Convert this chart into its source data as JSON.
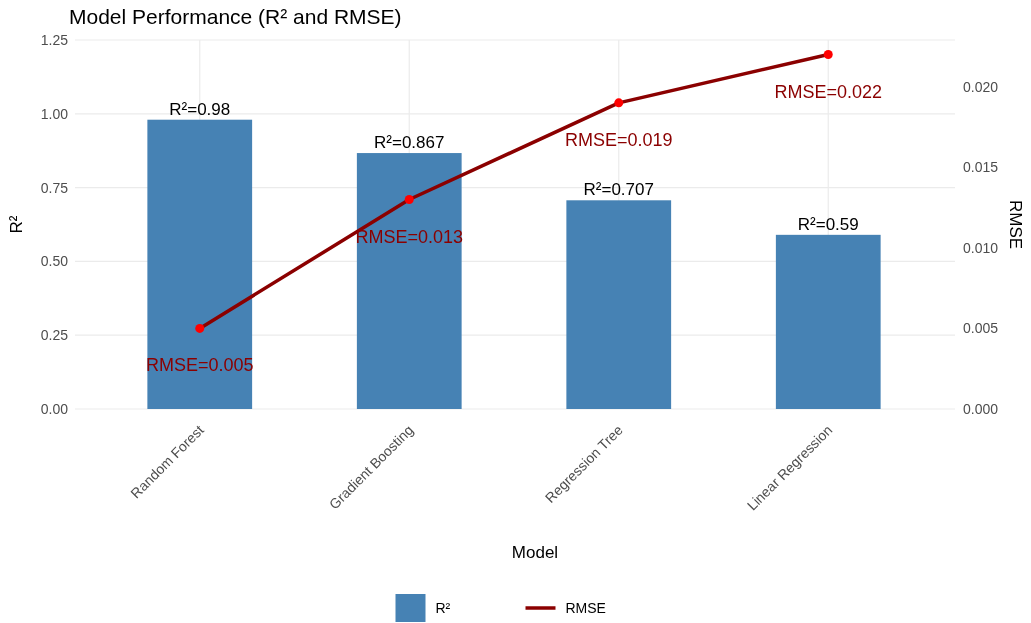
{
  "chart_data": {
    "type": "bar",
    "title": "Model Performance (R² and RMSE)",
    "xlabel": "Model",
    "ylabel": "R²",
    "y2label": "RMSE",
    "categories": [
      "Random Forest",
      "Gradient Boosting",
      "Regression Tree",
      "Linear Regression"
    ],
    "series": [
      {
        "name": "R²",
        "color": "#4682b4",
        "values": [
          0.98,
          0.867,
          0.707,
          0.59
        ],
        "value_labels": [
          "R²=0.98",
          "R²=0.867",
          "R²=0.707",
          "R²=0.59"
        ]
      },
      {
        "name": "RMSE",
        "type": "line",
        "axis": "y2",
        "color": "#8b0000",
        "marker": "circle",
        "values": [
          0.005,
          0.013,
          0.019,
          0.022
        ],
        "value_labels": [
          "RMSE=0.005",
          "RMSE=0.013",
          "RMSE=0.019",
          "RMSE=0.022"
        ]
      }
    ],
    "ylim": [
      0,
      1.25
    ],
    "yticks": [
      {
        "value": 0,
        "label": "0.00"
      },
      {
        "value": 0.25,
        "label": "0.25"
      },
      {
        "value": 0.5,
        "label": "0.50"
      },
      {
        "value": 0.75,
        "label": "0.75"
      },
      {
        "value": 1,
        "label": "1.00"
      },
      {
        "value": 1.25,
        "label": "1.25"
      }
    ],
    "y2lim": [
      0,
      0.0229
    ],
    "y2ticks": [
      {
        "value": 0,
        "label": "0.000"
      },
      {
        "value": 0.005,
        "label": "0.005"
      },
      {
        "value": 0.01,
        "label": "0.010"
      },
      {
        "value": 0.015,
        "label": "0.015"
      },
      {
        "value": 0.02,
        "label": "0.020"
      }
    ],
    "grid": true,
    "legend": "bottom"
  }
}
